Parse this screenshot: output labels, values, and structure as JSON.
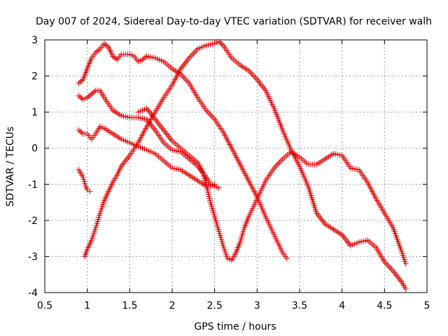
{
  "chart_data": {
    "type": "scatter",
    "title": "Day 007 of 2024, Sidereal Day-to-day VTEC variation (SDTVAR) for receiver walh",
    "xlabel": "GPS time / hours",
    "ylabel": "SDTVAR / TECUs",
    "xlim": [
      0.5,
      5.0
    ],
    "ylim": [
      -4,
      3
    ],
    "xticks": [
      0.5,
      1,
      1.5,
      2,
      2.5,
      3,
      3.5,
      4,
      4.5,
      5
    ],
    "xtick_labels": [
      "0.5",
      "1",
      "1.5",
      "2",
      "2.5",
      "3",
      "3.5",
      "4",
      "4.5",
      "5"
    ],
    "yticks": [
      -4,
      -3,
      -2,
      -1,
      0,
      1,
      2,
      3
    ],
    "ytick_labels": [
      "-4",
      "-3",
      "-2",
      "-1",
      "0",
      "1",
      "2",
      "3"
    ],
    "grid": true,
    "marker": "+",
    "color": "#e00000",
    "series": [
      {
        "name": "track-1",
        "points": [
          [
            0.9,
            1.8
          ],
          [
            0.95,
            1.9
          ],
          [
            1.0,
            2.2
          ],
          [
            1.05,
            2.5
          ],
          [
            1.1,
            2.65
          ],
          [
            1.15,
            2.75
          ],
          [
            1.2,
            2.9
          ],
          [
            1.25,
            2.8
          ],
          [
            1.3,
            2.55
          ],
          [
            1.35,
            2.45
          ],
          [
            1.4,
            2.6
          ],
          [
            1.5,
            2.6
          ],
          [
            1.55,
            2.55
          ],
          [
            1.6,
            2.4
          ],
          [
            1.65,
            2.45
          ],
          [
            1.7,
            2.55
          ],
          [
            1.8,
            2.5
          ],
          [
            1.9,
            2.4
          ],
          [
            2.0,
            2.2
          ],
          [
            2.1,
            2.05
          ],
          [
            2.2,
            1.8
          ],
          [
            2.3,
            1.4
          ],
          [
            2.4,
            1.05
          ],
          [
            2.5,
            0.8
          ],
          [
            2.6,
            0.45
          ],
          [
            2.7,
            0.0
          ],
          [
            2.8,
            -0.45
          ],
          [
            2.9,
            -0.9
          ],
          [
            3.0,
            -1.35
          ],
          [
            3.1,
            -1.9
          ],
          [
            3.2,
            -2.4
          ],
          [
            3.3,
            -2.9
          ],
          [
            3.35,
            -3.05
          ]
        ]
      },
      {
        "name": "track-2",
        "points": [
          [
            0.9,
            1.45
          ],
          [
            0.95,
            1.35
          ],
          [
            1.0,
            1.4
          ],
          [
            1.05,
            1.5
          ],
          [
            1.1,
            1.6
          ],
          [
            1.15,
            1.6
          ],
          [
            1.2,
            1.4
          ],
          [
            1.3,
            1.05
          ],
          [
            1.4,
            0.9
          ],
          [
            1.5,
            0.85
          ],
          [
            1.6,
            0.85
          ],
          [
            1.7,
            0.8
          ],
          [
            1.8,
            0.5
          ],
          [
            1.9,
            0.15
          ],
          [
            2.0,
            -0.05
          ],
          [
            2.1,
            -0.1
          ],
          [
            2.2,
            -0.3
          ],
          [
            2.3,
            -0.5
          ],
          [
            2.4,
            -0.8
          ],
          [
            2.45,
            -1.0
          ],
          [
            2.5,
            -1.05
          ],
          [
            2.55,
            -1.1
          ]
        ]
      },
      {
        "name": "track-3",
        "points": [
          [
            0.9,
            0.5
          ],
          [
            0.95,
            0.4
          ],
          [
            1.0,
            0.4
          ],
          [
            1.05,
            0.25
          ],
          [
            1.1,
            0.4
          ],
          [
            1.15,
            0.6
          ],
          [
            1.2,
            0.55
          ],
          [
            1.3,
            0.4
          ],
          [
            1.4,
            0.25
          ],
          [
            1.5,
            0.15
          ],
          [
            1.6,
            0.05
          ],
          [
            1.7,
            -0.05
          ],
          [
            1.8,
            -0.15
          ],
          [
            1.9,
            -0.35
          ],
          [
            2.0,
            -0.55
          ],
          [
            2.1,
            -0.6
          ],
          [
            2.2,
            -0.75
          ],
          [
            2.3,
            -0.9
          ],
          [
            2.4,
            -1.05
          ],
          [
            2.45,
            -1.05
          ],
          [
            2.5,
            -1.0
          ]
        ]
      },
      {
        "name": "track-4",
        "points": [
          [
            0.9,
            -0.6
          ],
          [
            0.95,
            -0.8
          ],
          [
            0.98,
            -1.05
          ],
          [
            1.0,
            -1.15
          ],
          [
            1.03,
            -1.2
          ]
        ]
      },
      {
        "name": "track-5",
        "points": [
          [
            0.97,
            -3.0
          ],
          [
            1.0,
            -2.8
          ],
          [
            1.05,
            -2.55
          ],
          [
            1.1,
            -2.2
          ],
          [
            1.15,
            -1.8
          ],
          [
            1.2,
            -1.45
          ],
          [
            1.25,
            -1.2
          ],
          [
            1.3,
            -0.95
          ],
          [
            1.35,
            -0.75
          ],
          [
            1.4,
            -0.5
          ],
          [
            1.5,
            -0.2
          ],
          [
            1.6,
            0.15
          ],
          [
            1.7,
            0.6
          ],
          [
            1.8,
            1.0
          ],
          [
            1.9,
            1.4
          ],
          [
            2.0,
            1.75
          ],
          [
            2.1,
            2.2
          ],
          [
            2.2,
            2.5
          ],
          [
            2.3,
            2.75
          ],
          [
            2.4,
            2.85
          ],
          [
            2.5,
            2.9
          ],
          [
            2.55,
            2.95
          ],
          [
            2.6,
            2.85
          ],
          [
            2.7,
            2.5
          ],
          [
            2.8,
            2.3
          ],
          [
            2.9,
            2.15
          ],
          [
            3.0,
            1.9
          ],
          [
            3.1,
            1.6
          ],
          [
            3.2,
            1.1
          ],
          [
            3.3,
            0.5
          ],
          [
            3.4,
            -0.05
          ],
          [
            3.5,
            -0.5
          ],
          [
            3.6,
            -1.05
          ],
          [
            3.7,
            -1.8
          ],
          [
            3.8,
            -2.1
          ],
          [
            3.9,
            -2.25
          ],
          [
            4.0,
            -2.4
          ],
          [
            4.1,
            -2.7
          ],
          [
            4.2,
            -2.6
          ],
          [
            4.3,
            -2.55
          ],
          [
            4.4,
            -2.75
          ],
          [
            4.5,
            -3.15
          ],
          [
            4.6,
            -3.4
          ],
          [
            4.7,
            -3.7
          ],
          [
            4.75,
            -3.9
          ]
        ]
      },
      {
        "name": "track-6",
        "points": [
          [
            1.6,
            1.0
          ],
          [
            1.7,
            1.1
          ],
          [
            1.8,
            0.8
          ],
          [
            1.9,
            0.5
          ],
          [
            2.0,
            0.2
          ],
          [
            2.1,
            0.0
          ],
          [
            2.2,
            -0.2
          ],
          [
            2.3,
            -0.4
          ],
          [
            2.35,
            -0.6
          ],
          [
            2.4,
            -1.0
          ],
          [
            2.45,
            -1.5
          ],
          [
            2.5,
            -1.9
          ],
          [
            2.55,
            -2.3
          ],
          [
            2.6,
            -2.7
          ],
          [
            2.65,
            -3.05
          ],
          [
            2.7,
            -3.1
          ],
          [
            2.75,
            -2.9
          ],
          [
            2.8,
            -2.6
          ],
          [
            2.85,
            -2.2
          ],
          [
            2.9,
            -1.9
          ],
          [
            3.0,
            -1.4
          ],
          [
            3.1,
            -0.9
          ],
          [
            3.2,
            -0.55
          ],
          [
            3.3,
            -0.3
          ],
          [
            3.4,
            -0.1
          ],
          [
            3.5,
            -0.25
          ],
          [
            3.6,
            -0.45
          ],
          [
            3.7,
            -0.45
          ],
          [
            3.8,
            -0.3
          ],
          [
            3.9,
            -0.15
          ],
          [
            4.0,
            -0.2
          ],
          [
            4.1,
            -0.55
          ],
          [
            4.2,
            -0.6
          ],
          [
            4.3,
            -0.95
          ],
          [
            4.4,
            -1.4
          ],
          [
            4.5,
            -1.8
          ],
          [
            4.6,
            -2.2
          ],
          [
            4.7,
            -2.85
          ],
          [
            4.75,
            -3.2
          ]
        ]
      }
    ]
  }
}
